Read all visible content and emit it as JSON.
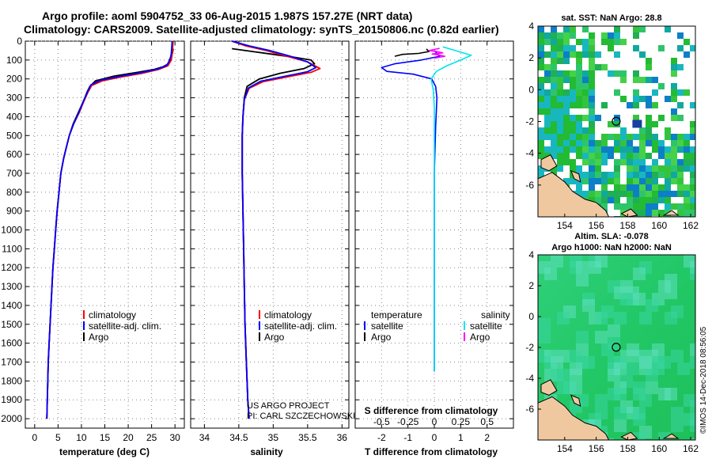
{
  "header": {
    "title_line1": "Argo profile: aoml 5904752_33 06-Aug-2015 1.987S 157.27E (NRT data)",
    "title_line2": "Climatology: CARS2009. Satellite-adjusted climatology: synTS_20150806.nc (0.82d earlier)"
  },
  "colors": {
    "climatology": "#ff0000",
    "satellite": "#0000ff",
    "argo": "#000000",
    "sat_salinity": "#00e5ee",
    "argo_salinity": "#ff00ff",
    "grid": "#888888",
    "land": "#f0c8a0",
    "sst_green": "#22bb33",
    "sla_green": "#22cc66"
  },
  "credits": {
    "project": "US ARGO PROJECT",
    "pi": "PI: CARL SZCZECHOWSKI",
    "imos": "©IMOS 14-Dec-2018 08:56:05"
  },
  "chart_data": [
    {
      "id": "temperature",
      "type": "line",
      "xlabel": "temperature (deg C)",
      "ylabel": "",
      "xlim": [
        -2,
        32
      ],
      "ylim": [
        0,
        2050
      ],
      "y_inverted": true,
      "xticks": [
        0,
        5,
        10,
        15,
        20,
        25,
        30
      ],
      "xtick_labels": [
        "0",
        "5",
        "10",
        "15",
        "20",
        "25",
        "30"
      ],
      "yticks": [
        0,
        100,
        200,
        300,
        400,
        500,
        600,
        700,
        800,
        900,
        1000,
        1100,
        1200,
        1300,
        1400,
        1500,
        1600,
        1700,
        1800,
        1900,
        2000
      ],
      "ytick_labels": [
        "0",
        "100",
        "200",
        "300",
        "400",
        "500",
        "600",
        "700",
        "800",
        "900",
        "1000",
        "1100",
        "1200",
        "1300",
        "1400",
        "1500",
        "1600",
        "1700",
        "1800",
        "1900",
        "2000"
      ],
      "grid": true,
      "legend": [
        {
          "label": "climatology",
          "color_key": "climatology"
        },
        {
          "label": "satellite-adj. clim.",
          "color_key": "satellite"
        },
        {
          "label": "Argo",
          "color_key": "argo"
        }
      ],
      "series": [
        {
          "name": "Argo",
          "color_key": "argo",
          "width": 1.8,
          "x": [
            29.6,
            29.5,
            29.2,
            28.8,
            28.6,
            27.5,
            25.5,
            22.0,
            17.0,
            13.0,
            11.8,
            11.2,
            10.4,
            9.3,
            8.2,
            7.4,
            6.8,
            6.2,
            5.6,
            5.2,
            4.8,
            4.5,
            4.2,
            3.9,
            3.7,
            3.5,
            3.3,
            3.1,
            2.9,
            2.8,
            2.7,
            2.6
          ],
          "y": [
            40,
            60,
            80,
            100,
            120,
            135,
            150,
            165,
            185,
            210,
            240,
            270,
            320,
            380,
            440,
            500,
            560,
            620,
            700,
            800,
            900,
            1000,
            1100,
            1200,
            1300,
            1400,
            1500,
            1600,
            1700,
            1800,
            1900,
            2000
          ]
        },
        {
          "name": "climatology",
          "color_key": "climatology",
          "width": 1.8,
          "x": [
            29.6,
            29.5,
            29.4,
            29.2,
            28.5,
            26.5,
            23.0,
            18.5,
            14.5,
            12.2,
            11.4,
            10.5,
            9.5,
            8.3,
            7.4,
            6.8,
            6.2,
            5.6,
            5.2,
            4.8,
            4.5,
            4.2,
            3.9,
            3.7,
            3.5,
            3.3,
            3.1,
            2.9,
            2.8,
            2.7,
            2.6
          ],
          "y": [
            0,
            40,
            70,
            100,
            130,
            150,
            170,
            190,
            210,
            235,
            270,
            320,
            380,
            440,
            500,
            560,
            620,
            700,
            800,
            900,
            1000,
            1100,
            1200,
            1300,
            1400,
            1500,
            1600,
            1700,
            1800,
            1900,
            2000
          ]
        },
        {
          "name": "satellite-adj. clim.",
          "color_key": "satellite",
          "width": 1.8,
          "x": [
            29.4,
            29.3,
            29.2,
            28.9,
            28.2,
            26.0,
            22.5,
            18.0,
            14.0,
            12.0,
            11.3,
            10.4,
            9.4,
            8.3,
            7.4,
            6.8,
            6.2,
            5.6,
            5.2,
            4.8,
            4.5,
            4.2,
            3.9,
            3.7,
            3.5,
            3.3,
            3.1,
            2.9,
            2.8,
            2.7,
            2.6
          ],
          "y": [
            0,
            40,
            70,
            100,
            130,
            150,
            168,
            188,
            208,
            232,
            270,
            320,
            380,
            440,
            500,
            560,
            620,
            700,
            800,
            900,
            1000,
            1100,
            1200,
            1300,
            1400,
            1500,
            1600,
            1700,
            1800,
            1900,
            2000
          ]
        }
      ]
    },
    {
      "id": "salinity",
      "type": "line",
      "xlabel": "salinity",
      "xlim": [
        33.8,
        36.1
      ],
      "ylim": [
        0,
        2050
      ],
      "y_inverted": true,
      "xticks": [
        34,
        34.5,
        35,
        35.5,
        36
      ],
      "xtick_labels": [
        "34",
        "34.5",
        "35",
        "35.5",
        "36"
      ],
      "yticks": [
        0,
        100,
        200,
        300,
        400,
        500,
        600,
        700,
        800,
        900,
        1000,
        1100,
        1200,
        1300,
        1400,
        1500,
        1600,
        1700,
        1800,
        1900,
        2000
      ],
      "grid": true,
      "legend": [
        {
          "label": "climatology",
          "color_key": "climatology"
        },
        {
          "label": "satellite-adj. clim.",
          "color_key": "satellite"
        },
        {
          "label": "Argo",
          "color_key": "argo"
        }
      ],
      "series": [
        {
          "name": "Argo",
          "color_key": "argo",
          "width": 1.8,
          "x": [
            34.4,
            34.7,
            35.0,
            35.3,
            35.55,
            35.6,
            35.45,
            35.1,
            34.8,
            34.62,
            34.58,
            34.56,
            34.55,
            34.55,
            34.56,
            34.57,
            34.58,
            34.59,
            34.61,
            34.62,
            34.63,
            34.65
          ],
          "y": [
            40,
            55,
            70,
            85,
            100,
            120,
            145,
            170,
            200,
            240,
            300,
            400,
            500,
            700,
            900,
            1100,
            1300,
            1500,
            1700,
            1800,
            1900,
            2000
          ]
        },
        {
          "name": "climatology",
          "color_key": "climatology",
          "width": 1.8,
          "x": [
            34.4,
            34.6,
            34.9,
            35.2,
            35.5,
            35.68,
            35.55,
            35.2,
            34.85,
            34.65,
            34.58,
            34.56,
            34.55,
            34.55,
            34.56,
            34.57,
            34.58,
            34.59,
            34.61,
            34.62,
            34.63,
            34.65
          ],
          "y": [
            0,
            25,
            50,
            80,
            110,
            145,
            165,
            190,
            215,
            250,
            310,
            400,
            500,
            700,
            900,
            1100,
            1300,
            1500,
            1700,
            1800,
            1900,
            2000
          ]
        },
        {
          "name": "satellite-adj. clim.",
          "color_key": "satellite",
          "width": 1.8,
          "x": [
            34.4,
            34.65,
            34.95,
            35.25,
            35.5,
            35.62,
            35.5,
            35.15,
            34.82,
            34.64,
            34.58,
            34.56,
            34.55,
            34.55,
            34.56,
            34.57,
            34.58,
            34.59,
            34.61,
            34.62,
            34.63,
            34.65
          ],
          "y": [
            0,
            25,
            50,
            80,
            110,
            140,
            162,
            188,
            212,
            248,
            310,
            400,
            500,
            700,
            900,
            1100,
            1300,
            1500,
            1700,
            1800,
            1900,
            2000
          ]
        }
      ]
    },
    {
      "id": "difference",
      "type": "line",
      "xlabel": "T difference from climatology",
      "top_label": "S difference from climatology",
      "xlim": [
        -3,
        3
      ],
      "top_xlim": [
        -0.75,
        0.75
      ],
      "ylim": [
        0,
        2050
      ],
      "y_inverted": true,
      "xticks": [
        -2,
        -1,
        0,
        1,
        2
      ],
      "xtick_labels": [
        "-2",
        "-1",
        "0",
        "1",
        "2"
      ],
      "top_xticks": [
        -0.5,
        -0.25,
        0,
        0.25,
        0.5
      ],
      "top_xtick_labels": [
        "-0.5",
        "-0.25",
        "0",
        "0.25",
        "0.5"
      ],
      "yticks": [
        0,
        100,
        200,
        300,
        400,
        500,
        600,
        700,
        800,
        900,
        1000,
        1100,
        1200,
        1300,
        1400,
        1500,
        1600,
        1700,
        1800,
        1900,
        2000
      ],
      "grid": true,
      "legend_left_title": "temperature",
      "legend_right_title": "salinity",
      "legend": [
        {
          "label": "satellite",
          "color_key": "satellite",
          "side": "left"
        },
        {
          "label": "Argo",
          "color_key": "argo",
          "side": "left"
        },
        {
          "label": "satellite",
          "color_key": "sat_salinity",
          "side": "right"
        },
        {
          "label": "Argo",
          "color_key": "argo_salinity",
          "side": "right"
        }
      ],
      "series": [
        {
          "name": "T satellite",
          "color_key": "satellite",
          "width": 1.6,
          "scale": "bottom",
          "x": [
            0,
            0.2,
            -0.5,
            -1.5,
            -2.0,
            -1.8,
            -0.8,
            -0.1,
            0.05,
            0.1,
            0.05,
            0.0,
            0.0,
            0.0,
            0.0
          ],
          "y": [
            50,
            80,
            100,
            120,
            140,
            160,
            175,
            200,
            240,
            300,
            450,
            700,
            1000,
            1500,
            1750
          ]
        },
        {
          "name": "T Argo",
          "color_key": "argo",
          "width": 1.6,
          "scale": "bottom",
          "x": [
            -1.5,
            -1.2,
            -0.6,
            -0.2,
            -0.3
          ],
          "y": [
            80,
            70,
            65,
            55,
            42
          ]
        },
        {
          "name": "S satellite",
          "color_key": "sat_salinity",
          "width": 1.6,
          "scale": "top",
          "x": [
            0.08,
            0.2,
            0.35,
            0.25,
            0.12,
            0.02,
            -0.03,
            -0.01,
            0.0,
            0.0,
            0.0,
            0.0,
            0.0
          ],
          "y": [
            30,
            50,
            75,
            100,
            130,
            160,
            200,
            260,
            350,
            500,
            800,
            1200,
            1750
          ]
        },
        {
          "name": "S Argo",
          "color_key": "argo_salinity",
          "width": 1.6,
          "scale": "top",
          "x": [
            0.05,
            -0.05,
            0.02,
            0.08,
            -0.02,
            0.05,
            0.1,
            0.0
          ],
          "y": [
            38,
            50,
            55,
            62,
            68,
            74,
            80,
            90
          ]
        }
      ]
    },
    {
      "id": "sst_map",
      "type": "heatmap",
      "title": "sat. SST: NaN Argo: 28.8",
      "xlim": [
        152.3,
        162.3
      ],
      "ylim": [
        -8,
        4
      ],
      "xticks": [
        154,
        156,
        158,
        160,
        162
      ],
      "xtick_labels": [
        "154",
        "156",
        "158",
        "160",
        "162"
      ],
      "yticks": [
        -6,
        -4,
        -2,
        0,
        2,
        4
      ],
      "ytick_labels": [
        "-6",
        "-4",
        "-2",
        "0",
        "2",
        "4"
      ],
      "float_position": [
        157.27,
        -1.987
      ]
    },
    {
      "id": "sla_map",
      "type": "heatmap",
      "title_line1": "Altim. SLA: -0.078",
      "title_line2": "Argo h1000: NaN h2000: NaN",
      "xlim": [
        152.3,
        162.3
      ],
      "ylim": [
        -8,
        4
      ],
      "xticks": [
        154,
        156,
        158,
        160,
        162
      ],
      "xtick_labels": [
        "154",
        "156",
        "158",
        "160",
        "162"
      ],
      "yticks": [
        -6,
        -4,
        -2,
        0,
        2,
        4
      ],
      "ytick_labels": [
        "-6",
        "-4",
        "-2",
        "0",
        "2",
        "4"
      ],
      "float_position": [
        157.27,
        -1.987
      ]
    }
  ]
}
